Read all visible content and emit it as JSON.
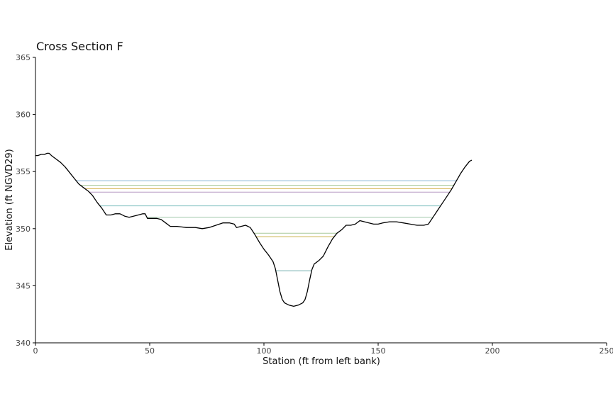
{
  "chart_data": {
    "type": "line",
    "title": "Cross Section F",
    "xlabel": "Station (ft from left bank)",
    "ylabel": "Elevation (ft NGVD29)",
    "xlim": [
      0,
      250
    ],
    "ylim": [
      340,
      365
    ],
    "x_ticks": [
      0,
      50,
      100,
      150,
      200,
      250
    ],
    "y_ticks": [
      340,
      345,
      350,
      355,
      360,
      365
    ],
    "legend": "none",
    "grid": false,
    "ground_profile": {
      "color": "#000000",
      "points": [
        [
          0,
          356.4
        ],
        [
          1,
          356.4
        ],
        [
          2.5,
          356.5
        ],
        [
          4,
          356.5
        ],
        [
          5,
          356.6
        ],
        [
          6,
          356.6
        ],
        [
          7,
          356.4
        ],
        [
          9,
          356.1
        ],
        [
          11,
          355.8
        ],
        [
          13,
          355.4
        ],
        [
          15,
          354.9
        ],
        [
          17,
          354.4
        ],
        [
          19,
          353.9
        ],
        [
          21,
          353.6
        ],
        [
          23,
          353.3
        ],
        [
          25,
          352.9
        ],
        [
          27,
          352.3
        ],
        [
          29,
          351.8
        ],
        [
          31,
          351.2
        ],
        [
          33,
          351.2
        ],
        [
          35,
          351.3
        ],
        [
          37,
          351.3
        ],
        [
          39,
          351.1
        ],
        [
          41,
          351.0
        ],
        [
          43,
          351.1
        ],
        [
          45,
          351.2
        ],
        [
          47,
          351.3
        ],
        [
          48,
          351.3
        ],
        [
          49,
          350.9
        ],
        [
          51,
          350.9
        ],
        [
          53,
          350.9
        ],
        [
          55,
          350.8
        ],
        [
          57,
          350.5
        ],
        [
          59,
          350.2
        ],
        [
          62,
          350.2
        ],
        [
          66,
          350.1
        ],
        [
          70,
          350.1
        ],
        [
          73,
          350.0
        ],
        [
          76,
          350.1
        ],
        [
          79,
          350.3
        ],
        [
          82,
          350.5
        ],
        [
          85,
          350.5
        ],
        [
          87,
          350.4
        ],
        [
          88,
          350.1
        ],
        [
          90,
          350.2
        ],
        [
          92,
          350.3
        ],
        [
          94,
          350.1
        ],
        [
          96,
          349.5
        ],
        [
          98,
          348.8
        ],
        [
          100,
          348.2
        ],
        [
          102,
          347.7
        ],
        [
          104,
          347.1
        ],
        [
          105,
          346.5
        ],
        [
          106,
          345.5
        ],
        [
          107,
          344.5
        ],
        [
          108,
          343.8
        ],
        [
          109,
          343.5
        ],
        [
          111,
          343.3
        ],
        [
          113,
          343.2
        ],
        [
          115,
          343.3
        ],
        [
          117,
          343.5
        ],
        [
          118,
          343.8
        ],
        [
          119,
          344.5
        ],
        [
          120,
          345.5
        ],
        [
          121,
          346.4
        ],
        [
          122,
          346.9
        ],
        [
          124,
          347.2
        ],
        [
          126,
          347.6
        ],
        [
          128,
          348.4
        ],
        [
          130,
          349.1
        ],
        [
          132,
          349.6
        ],
        [
          134,
          349.9
        ],
        [
          136,
          350.3
        ],
        [
          138,
          350.3
        ],
        [
          140,
          350.4
        ],
        [
          142,
          350.7
        ],
        [
          144,
          350.6
        ],
        [
          146,
          350.5
        ],
        [
          148,
          350.4
        ],
        [
          150,
          350.4
        ],
        [
          152,
          350.5
        ],
        [
          155,
          350.6
        ],
        [
          158,
          350.6
        ],
        [
          161,
          350.5
        ],
        [
          164,
          350.4
        ],
        [
          167,
          350.3
        ],
        [
          170,
          350.3
        ],
        [
          172,
          350.4
        ],
        [
          174,
          351.0
        ],
        [
          176,
          351.6
        ],
        [
          178,
          352.2
        ],
        [
          180,
          352.8
        ],
        [
          182,
          353.4
        ],
        [
          184,
          354.1
        ],
        [
          186,
          354.8
        ],
        [
          188,
          355.4
        ],
        [
          190,
          355.9
        ],
        [
          191,
          356.0
        ]
      ]
    },
    "water_surfaces": [
      {
        "elevation": 354.2,
        "color": "#8ab8d8"
      },
      {
        "elevation": 353.8,
        "color": "#a9c99a"
      },
      {
        "elevation": 353.5,
        "color": "#d4b14a"
      },
      {
        "elevation": 353.2,
        "color": "#b79ac4"
      },
      {
        "elevation": 352.0,
        "color": "#7fc0c0"
      },
      {
        "elevation": 351.0,
        "color": "#9fc7a8"
      },
      {
        "elevation": 349.6,
        "color": "#a9c99a"
      },
      {
        "elevation": 349.3,
        "color": "#c9b24a"
      },
      {
        "elevation": 346.3,
        "color": "#6aa8a8"
      }
    ]
  }
}
